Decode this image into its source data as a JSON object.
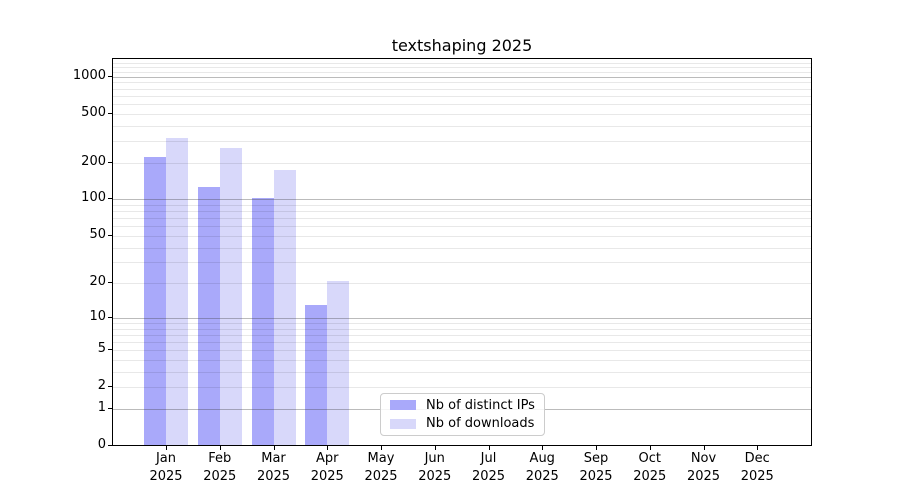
{
  "title": "textshaping 2025",
  "chart_data": {
    "type": "bar",
    "title": "textshaping 2025",
    "yscale": "log1p",
    "grid": "horizontal major+minor",
    "legend_position": "lower center",
    "categories": [
      "Jan 2025",
      "Feb 2025",
      "Mar 2025",
      "Apr 2025",
      "May 2025",
      "Jun 2025",
      "Jul 2025",
      "Aug 2025",
      "Sep 2025",
      "Oct 2025",
      "Nov 2025",
      "Dec 2025"
    ],
    "month_labels": [
      "Jan",
      "Feb",
      "Mar",
      "Apr",
      "May",
      "Jun",
      "Jul",
      "Aug",
      "Sep",
      "Oct",
      "Nov",
      "Dec"
    ],
    "year_label": "2025",
    "y_ticks": [
      0,
      1,
      2,
      5,
      10,
      20,
      50,
      100,
      200,
      500,
      1000
    ],
    "y_major_gridlines": [
      1,
      10,
      100,
      1000
    ],
    "y_minor_gridlines": [
      2,
      3,
      4,
      5,
      6,
      7,
      8,
      9,
      20,
      30,
      40,
      50,
      60,
      70,
      80,
      90,
      200,
      300,
      400,
      500,
      600,
      700,
      800,
      900,
      1100,
      1200,
      1300
    ],
    "ylim": [
      0,
      1395
    ],
    "series": [
      {
        "name": "Nb of distinct IPs",
        "color": "#a9a9fa",
        "values": [
          224,
          127,
          103,
          13,
          null,
          null,
          null,
          null,
          null,
          null,
          null,
          null
        ]
      },
      {
        "name": "Nb of downloads",
        "color": "#d8d8fa",
        "values": [
          315,
          261,
          174,
          21,
          null,
          null,
          null,
          null,
          null,
          null,
          null,
          null
        ]
      }
    ]
  },
  "colors": {
    "axis": "#000000",
    "major_grid": "rgba(60,60,60,0.35)",
    "minor_grid": "rgba(0,0,0,0.09)",
    "legend_border": "#cccccc",
    "background": "#ffffff"
  }
}
